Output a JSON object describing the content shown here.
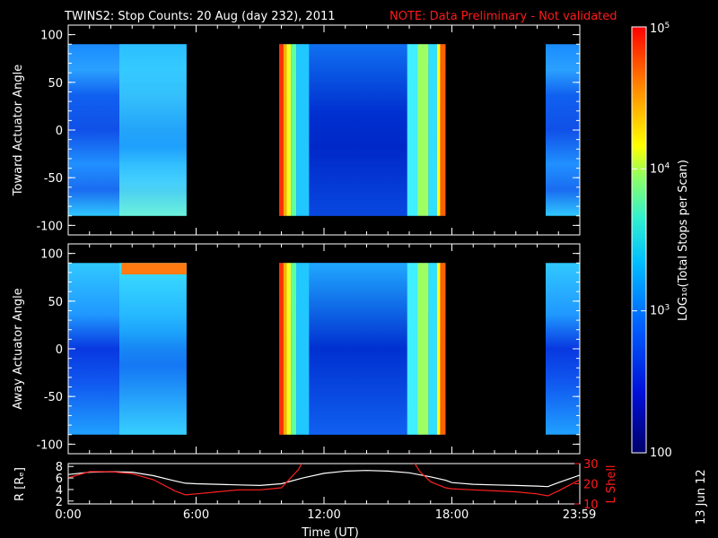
{
  "title": "TWINS2: Stop Counts: 20 Aug (day 232), 2011",
  "note": "NOTE: Data Preliminary - Not validated",
  "date_stamp": "13 Jun 12",
  "colors": {
    "note": "#ff1a1a",
    "background": "#000000",
    "rshell": "#ffffff",
    "lshell": "#ff2020"
  },
  "chart_data": [
    {
      "type": "heatmap",
      "name": "toward",
      "ylabel": "Toward Actuator Angle",
      "ylim": [
        -110,
        110
      ],
      "yticks": [
        "100",
        "50",
        "0",
        "-50",
        "-100"
      ],
      "ytick_values": [
        100,
        50,
        0,
        -50,
        -100
      ],
      "xlim": [
        0,
        24
      ],
      "data_segments_hours": [
        [
          0,
          5.55
        ],
        [
          9.9,
          17.7
        ],
        [
          22.4,
          24
        ]
      ],
      "angle_range": [
        -90,
        90
      ],
      "colorscale": "log",
      "zrange": [
        100,
        100000
      ]
    },
    {
      "type": "heatmap",
      "name": "away",
      "ylabel": "Away Actuator Angle",
      "ylim": [
        -110,
        110
      ],
      "yticks": [
        "100",
        "50",
        "0",
        "-50",
        "-100"
      ],
      "ytick_values": [
        100,
        50,
        0,
        -50,
        -100
      ],
      "xlim": [
        0,
        24
      ],
      "data_segments_hours": [
        [
          0,
          5.55
        ],
        [
          9.9,
          17.7
        ],
        [
          22.4,
          24
        ]
      ],
      "angle_range": [
        -90,
        90
      ],
      "colorscale": "log",
      "zrange": [
        100,
        100000
      ]
    },
    {
      "type": "line",
      "name": "orbit",
      "xlabel": "Time (UT)",
      "xticks": [
        "0:00",
        "6:00",
        "12:00",
        "18:00",
        "23:59"
      ],
      "xtick_values": [
        0,
        6,
        12,
        18,
        23.98
      ],
      "ylabel_left": "R [Rₑ]",
      "ylabel_right": "L Shell",
      "ylim_left": [
        1.5,
        8.5
      ],
      "yticks_left": [
        "8",
        "6",
        "4",
        "2"
      ],
      "ytick_values_left": [
        8,
        6,
        4,
        2
      ],
      "ylim_right": [
        10,
        30
      ],
      "yticks_right": [
        "30",
        "20",
        "10"
      ],
      "ytick_values_right": [
        30,
        20,
        10
      ],
      "series": [
        {
          "axis": "left",
          "x": [
            0,
            1,
            2,
            3,
            4,
            5,
            5.5,
            6,
            7,
            8,
            9,
            10,
            11,
            12,
            13,
            14,
            15,
            16,
            17,
            17.7,
            18,
            19,
            20,
            21,
            22,
            22.5,
            23,
            24
          ],
          "y": [
            6.6,
            7.0,
            7.1,
            7.0,
            6.4,
            5.5,
            5.1,
            5.0,
            4.9,
            4.8,
            4.7,
            5.0,
            6.0,
            6.8,
            7.2,
            7.3,
            7.2,
            6.9,
            6.2,
            5.6,
            5.2,
            4.9,
            4.8,
            4.7,
            4.6,
            4.5,
            5.2,
            6.5
          ]
        },
        {
          "axis": "right",
          "x": [
            0,
            1,
            2,
            3,
            4,
            5,
            5.5,
            6,
            7,
            8,
            9,
            10,
            10.8,
            11,
            16.2,
            16.5,
            17,
            17.7,
            18,
            19,
            20,
            21,
            22,
            22.5,
            23,
            24
          ],
          "y": [
            23,
            26,
            26,
            25,
            22,
            16.5,
            14.5,
            15,
            16,
            17,
            17,
            18,
            27,
            31,
            31,
            26,
            21,
            18,
            17.5,
            17,
            16.5,
            16,
            15,
            14,
            16.5,
            22
          ]
        }
      ]
    }
  ],
  "colorbar": {
    "label": "LOG₁₀(Total Stops per Scan)",
    "scale": "log",
    "zrange": [
      100,
      100000
    ],
    "ticks": [
      {
        "label": "10",
        "exp": "5",
        "value": 100000
      },
      {
        "label": "10",
        "exp": "4",
        "value": 10000
      },
      {
        "label": "10",
        "exp": "3",
        "value": 1000
      },
      {
        "label": "100",
        "exp": "",
        "value": 100
      }
    ]
  }
}
